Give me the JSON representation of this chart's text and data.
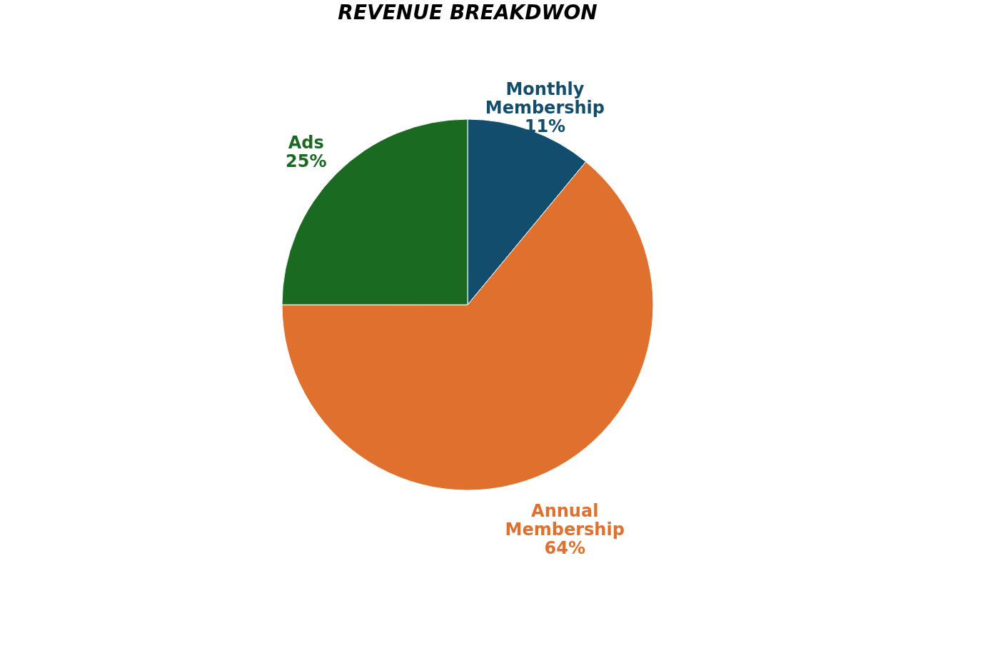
{
  "chart_data": {
    "type": "pie",
    "title": "REVENUE BREAKDWON",
    "categories": [
      "Monthly Membership",
      "Annual Membership",
      "Ads"
    ],
    "values": [
      11,
      64,
      25
    ],
    "colors": [
      "#134d6e",
      "#e0702e",
      "#1b6a22"
    ],
    "value_labels": [
      "11%",
      "64%",
      "25%"
    ],
    "legend": false
  }
}
